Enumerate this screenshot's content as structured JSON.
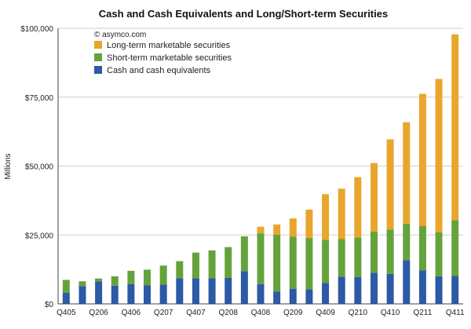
{
  "chart_data": {
    "type": "bar",
    "stacked": true,
    "title": "Cash and Cash Equivalents and Long/Short-term Securities",
    "watermark": "© asymco.com",
    "ylabel": "Millions",
    "xlabel": "",
    "ylim": [
      0,
      100000
    ],
    "yticks": [
      {
        "value": 0,
        "label": "$0"
      },
      {
        "value": 25000,
        "label": "$25,000"
      },
      {
        "value": 50000,
        "label": "$50,000"
      },
      {
        "value": 75000,
        "label": "$75,000"
      },
      {
        "value": 100000,
        "label": "$100,000"
      }
    ],
    "grid": true,
    "legend_position": "top-left",
    "categories": [
      "Q405",
      "Q106",
      "Q206",
      "Q306",
      "Q406",
      "Q107",
      "Q207",
      "Q307",
      "Q407",
      "Q108",
      "Q208",
      "Q308",
      "Q408",
      "Q109",
      "Q209",
      "Q309",
      "Q409",
      "Q110",
      "Q210",
      "Q310",
      "Q410",
      "Q111",
      "Q211",
      "Q311",
      "Q411"
    ],
    "xtick_labels": [
      "Q405",
      "",
      "Q206",
      "",
      "Q406",
      "",
      "Q207",
      "",
      "Q407",
      "",
      "Q208",
      "",
      "Q408",
      "",
      "Q209",
      "",
      "Q409",
      "",
      "Q210",
      "",
      "Q410",
      "",
      "Q211",
      "",
      "Q411"
    ],
    "series": [
      {
        "name": "Cash and cash equivalents",
        "color": "#2b5aa6",
        "values": [
          4000,
          6400,
          8200,
          6600,
          7200,
          6700,
          7000,
          9300,
          9300,
          9300,
          9400,
          11900,
          7200,
          4500,
          5500,
          5300,
          7600,
          9900,
          9700,
          11300,
          10900,
          15800,
          12100,
          10000,
          10100
        ]
      },
      {
        "name": "Short-term marketable securities",
        "color": "#66a23c",
        "values": [
          4700,
          1800,
          1000,
          3400,
          4800,
          5700,
          6900,
          6200,
          9300,
          10100,
          11200,
          12600,
          18400,
          20600,
          18900,
          18600,
          15700,
          13600,
          14400,
          14900,
          16100,
          13300,
          16100,
          16000,
          20300
        ]
      },
      {
        "name": "Long-term marketable securities",
        "color": "#e9a62c",
        "values": [
          0,
          0,
          0,
          0,
          0,
          0,
          0,
          0,
          0,
          0,
          0,
          0,
          2400,
          3700,
          6600,
          10300,
          16500,
          18300,
          21900,
          24900,
          32700,
          36800,
          48000,
          55600,
          67400
        ]
      }
    ]
  }
}
